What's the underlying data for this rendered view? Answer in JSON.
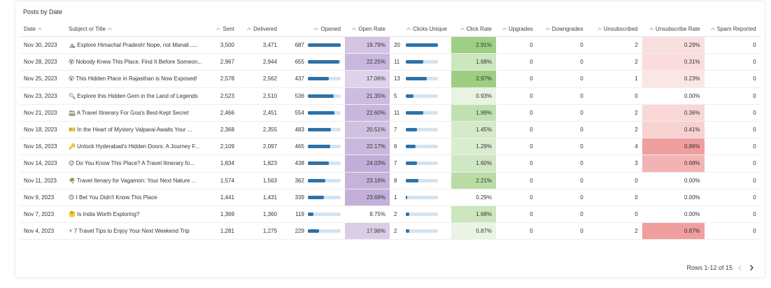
{
  "card": {
    "title": "Posts by Date"
  },
  "table": {
    "columns": [
      "Date",
      "Subject or Title",
      "Sent",
      "Delivered",
      "Opened",
      "Open Rate",
      "Clicks Unique",
      "Click Rate",
      "Upgrades",
      "Downgrades",
      "Unsubscribed",
      "Unsubscribe Rate",
      "Spam Reported"
    ],
    "rows": [
      [
        "Nov 30, 2023",
        "⛰️ Explore Himachal Pradesh! Nope, not Manali......",
        "3,500",
        "3,471",
        "687",
        "19.79%",
        "20",
        "2.91%",
        "0",
        "0",
        "2",
        "0.29%",
        "0"
      ],
      [
        "Nov 28, 2023",
        "😵 Nobody Knew This Place. Find It Before Someon...",
        "2,967",
        "2,944",
        "655",
        "22.25%",
        "11",
        "1.68%",
        "0",
        "0",
        "2",
        "0.31%",
        "0"
      ],
      [
        "Nov 25, 2023",
        "😲 This Hidden Place in Rajasthan is Now Exposed!",
        "2,578",
        "2,562",
        "437",
        "17.06%",
        "13",
        "2.97%",
        "0",
        "0",
        "1",
        "0.23%",
        "0"
      ],
      [
        "Nov 23, 2023",
        "🔍 Explore this Hidden Gem in the Land of Legends",
        "2,523",
        "2,510",
        "536",
        "21.35%",
        "5",
        "0.93%",
        "0",
        "0",
        "0",
        "0.00%",
        "0"
      ],
      [
        "Nov 21, 2023",
        "🚞 A Travel Itinerary For Goa's Best-Kept Secret",
        "2,466",
        "2,451",
        "554",
        "22.60%",
        "11",
        "1.99%",
        "0",
        "0",
        "2",
        "0.36%",
        "0"
      ],
      [
        "Nov 18, 2023",
        "🎫 In the Heart of Mystery Valparai Awaits Your ...",
        "2,368",
        "2,355",
        "483",
        "20.51%",
        "7",
        "1.45%",
        "0",
        "0",
        "2",
        "0.41%",
        "0"
      ],
      [
        "Nov 16, 2023",
        "🔑 Unlock Hyderabad's Hidden Doors: A Journey F...",
        "2,109",
        "2,097",
        "465",
        "22.17%",
        "6",
        "1.29%",
        "0",
        "0",
        "4",
        "0.86%",
        "0"
      ],
      [
        "Nov 14, 2023",
        "😉 Do You Know This Place? A Travel Itinerary fo...",
        "1,834",
        "1,823",
        "438",
        "24.03%",
        "7",
        "1.60%",
        "0",
        "0",
        "3",
        "0.68%",
        "0"
      ],
      [
        "Nov 11, 2023",
        "🌴 Travel Itenary for Vagamon: Your Next Nature ...",
        "1,574",
        "1,563",
        "362",
        "23.16%",
        "8",
        "2.21%",
        "0",
        "0",
        "0",
        "0.00%",
        "0"
      ],
      [
        "Nov 9, 2023",
        "🙃 I Bet You Didn't Know This Place",
        "1,441",
        "1,431",
        "339",
        "23.69%",
        "1",
        "0.29%",
        "0",
        "0",
        "0",
        "0.00%",
        "0"
      ],
      [
        "Nov 7, 2023",
        "🤔 Is India Worth Exploring?",
        "1,369",
        "1,360",
        "119",
        "8.75%",
        "2",
        "1.68%",
        "0",
        "0",
        "0",
        "0.00%",
        "0"
      ],
      [
        "Nov 4, 2023",
        "⚡ 7 Travel Tips to Enjoy Your Next Weekend Trip",
        "1,281",
        "1,275",
        "229",
        "17.96%",
        "2",
        "0.87%",
        "0",
        "0",
        "2",
        "0.87%",
        "0"
      ]
    ]
  },
  "footer": {
    "pagination": "Rows 1-12 of 15"
  }
}
